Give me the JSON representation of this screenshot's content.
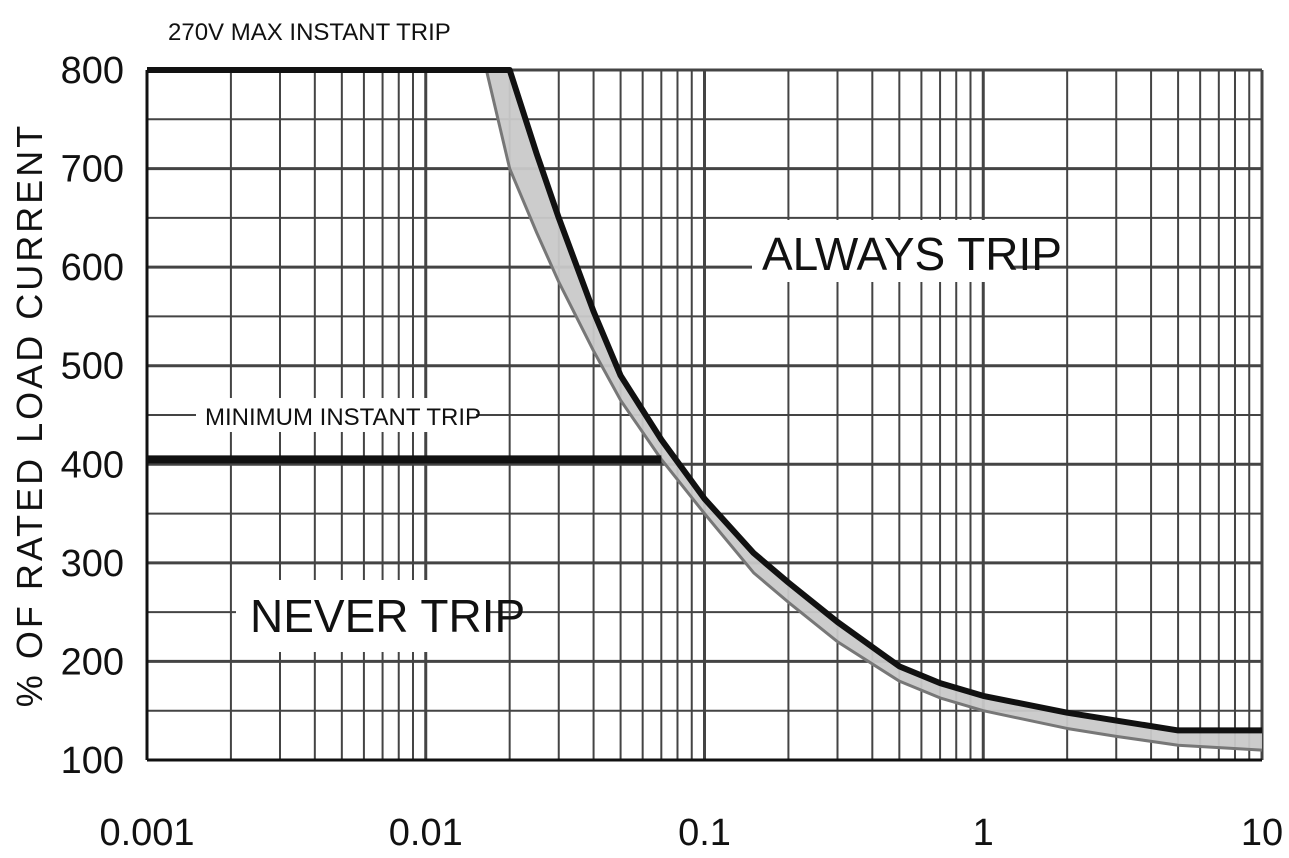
{
  "chart_data": {
    "type": "line",
    "title": "",
    "xlabel": "",
    "ylabel": "% OF RATED LOAD CURRENT",
    "x_scale": "log",
    "xlim": [
      0.001,
      10
    ],
    "ylim": [
      100,
      800
    ],
    "x_ticks": [
      "0.001",
      "0.01",
      "0.1",
      "1",
      "10"
    ],
    "y_ticks": [
      "100",
      "200",
      "300",
      "400",
      "500",
      "600",
      "700",
      "800"
    ],
    "grid": true,
    "colors": {
      "line": "#111111",
      "band": "#c9c9c9",
      "grid": "#444444"
    },
    "annotations": {
      "max_trip": "270V MAX INSTANT TRIP",
      "min_trip": "MINIMUM INSTANT TRIP",
      "always": "ALWAYS TRIP",
      "never": "NEVER TRIP"
    },
    "series": [
      {
        "x": [
          0.001,
          0.02,
          0.025,
          0.03,
          0.04,
          0.05,
          0.07,
          0.1,
          0.15,
          0.2,
          0.3,
          0.5,
          0.7,
          1,
          2,
          3,
          5,
          10
        ],
        "values": [
          800,
          800,
          715,
          650,
          555,
          490,
          425,
          365,
          310,
          280,
          240,
          195,
          178,
          165,
          148,
          140,
          130,
          130
        ]
      },
      {
        "x": [
          0.0165,
          0.02,
          0.025,
          0.03,
          0.04,
          0.05,
          0.07,
          0.1,
          0.15,
          0.2,
          0.3,
          0.5,
          0.7,
          1,
          2,
          3,
          5,
          10
        ],
        "values": [
          800,
          700,
          635,
          585,
          515,
          465,
          405,
          350,
          290,
          260,
          220,
          180,
          163,
          150,
          132,
          124,
          115,
          110
        ]
      },
      {
        "x": [
          0.001,
          0.07
        ],
        "values": [
          405,
          405
        ]
      }
    ]
  }
}
